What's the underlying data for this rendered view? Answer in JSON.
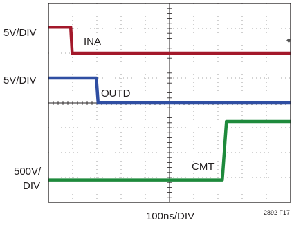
{
  "figure_id": "2892 F17",
  "chart_data": {
    "type": "line",
    "xlabel": "100ns/DIV",
    "x_divisions": 10,
    "y_divisions": 8,
    "grid": true,
    "scale_labels": [
      {
        "text": "5V/DIV",
        "channel": "INA"
      },
      {
        "text": "5V/DIV",
        "channel": "OUTD"
      },
      {
        "text": "500V/ DIV",
        "channel": "CMT"
      }
    ],
    "series": [
      {
        "name": "INA",
        "color": "#a3182a",
        "x": [
          0,
          0.92,
          0.98,
          10
        ],
        "y": [
          7.05,
          7.05,
          6.0,
          6.0
        ]
      },
      {
        "name": "OUTD",
        "color": "#2f4ea2",
        "x": [
          0,
          1.98,
          2.05,
          10
        ],
        "y": [
          5.0,
          5.0,
          4.0,
          4.0
        ]
      },
      {
        "name": "CMT",
        "color": "#1e8a3c",
        "x": [
          0,
          7.18,
          7.35,
          10
        ],
        "y": [
          0.9,
          0.9,
          3.25,
          3.25
        ]
      }
    ]
  }
}
